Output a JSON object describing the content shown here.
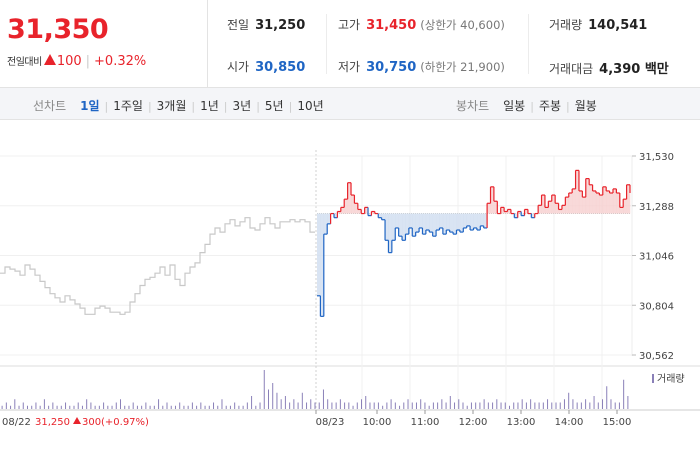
{
  "summary": {
    "price": "31,350",
    "change_label": "전일대비",
    "change_amount": "100",
    "change_rate": "+0.32%"
  },
  "stats": {
    "prev_close": {
      "label": "전일",
      "value": "31,250"
    },
    "open": {
      "label": "시가",
      "value": "30,850"
    },
    "high": {
      "label": "고가",
      "value": "31,450",
      "sub": "(상한가 40,600)"
    },
    "low": {
      "label": "저가",
      "value": "30,750",
      "sub": "(하한가 21,900)"
    },
    "volume": {
      "label": "거래량",
      "value": "140,541"
    },
    "amount": {
      "label": "거래대금",
      "value": "4,390 백만"
    }
  },
  "tabs": {
    "line_title": "선차트",
    "line_items": [
      "1일",
      "1주일",
      "3개월",
      "1년",
      "3년",
      "5년",
      "10년"
    ],
    "line_active": "1일",
    "candle_title": "봉차트",
    "candle_items": [
      "일봉",
      "주봉",
      "월봉"
    ]
  },
  "chart_data": {
    "type": "line",
    "y_ticks": [
      "31,530",
      "31,288",
      "31,046",
      "30,804",
      "30,562"
    ],
    "ylim": [
      30562,
      31530
    ],
    "reference_price": 31250,
    "previous_day": {
      "date_label": "08/22",
      "close": "31,250",
      "change": "300",
      "rate": "(+0.97%)"
    },
    "time_labels": [
      "08/23",
      "10:00",
      "11:00",
      "12:00",
      "13:00",
      "14:00",
      "15:00"
    ],
    "volume_legend": "거래량",
    "colors": {
      "up": "#e8232b",
      "down": "#1f65c4",
      "prev_day": "#c8c8c8",
      "up_fill": "#f6d0d0",
      "down_fill": "#d0ddf0",
      "volume": "#8a80b8"
    },
    "prev_series": [
      30960,
      30990,
      30980,
      30970,
      30950,
      31000,
      30980,
      30950,
      30920,
      30890,
      30860,
      30840,
      30820,
      30850,
      30830,
      30810,
      30790,
      30760,
      30760,
      30790,
      30800,
      30790,
      30770,
      30770,
      30760,
      30770,
      30820,
      30860,
      30900,
      30930,
      30940,
      30960,
      30990,
      30950,
      31000,
      30930,
      30900,
      30960,
      30990,
      31010,
      31060,
      31100,
      31150,
      31180,
      31160,
      31200,
      31220,
      31190,
      31210,
      31230,
      31180,
      31170,
      31200,
      31230,
      31200,
      31180,
      31210,
      31210,
      31220,
      31210,
      31220,
      31210,
      31160,
      31160
    ],
    "today_series": [
      30850,
      30750,
      31150,
      31200,
      31250,
      31230,
      31260,
      31280,
      31320,
      31400,
      31340,
      31300,
      31270,
      31250,
      31280,
      31240,
      31260,
      31250,
      31230,
      31220,
      31120,
      31060,
      31120,
      31180,
      31140,
      31120,
      31150,
      31180,
      31140,
      31160,
      31180,
      31150,
      31170,
      31160,
      31140,
      31170,
      31180,
      31150,
      31170,
      31160,
      31150,
      31170,
      31160,
      31180,
      31190,
      31170,
      31180,
      31170,
      31190,
      31180,
      31300,
      31380,
      31310,
      31250,
      31280,
      31260,
      31270,
      31250,
      31230,
      31260,
      31240,
      31270,
      31250,
      31230,
      31250,
      31290,
      31340,
      31280,
      31310,
      31340,
      31300,
      31270,
      31290,
      31330,
      31350,
      31370,
      31460,
      31360,
      31330,
      31420,
      31390,
      31360,
      31350,
      31340,
      31380,
      31360,
      31350,
      31370,
      31350,
      31280,
      31320,
      31390,
      31350
    ],
    "volume_series": [
      1,
      2,
      1,
      3,
      1,
      2,
      1,
      1,
      2,
      1,
      3,
      1,
      2,
      1,
      1,
      2,
      1,
      1,
      2,
      1,
      3,
      2,
      1,
      1,
      2,
      1,
      1,
      2,
      3,
      1,
      1,
      2,
      1,
      1,
      2,
      1,
      1,
      3,
      1,
      2,
      1,
      1,
      2,
      1,
      1,
      2,
      1,
      2,
      1,
      1,
      2,
      1,
      3,
      1,
      1,
      2,
      1,
      1,
      2,
      4,
      1,
      2,
      12,
      6,
      8,
      5,
      3,
      4,
      2,
      3,
      2,
      5,
      2,
      3,
      2,
      2,
      6,
      3,
      2,
      2,
      3,
      2,
      2,
      1,
      2,
      3,
      4,
      2,
      2,
      2,
      1,
      2,
      3,
      2,
      1,
      2,
      3,
      2,
      2,
      3,
      2,
      1,
      2,
      2,
      3,
      2,
      4,
      2,
      3,
      2,
      1,
      2,
      2,
      2,
      3,
      2,
      2,
      3,
      2,
      2,
      1,
      2,
      2,
      3,
      2,
      3,
      2,
      2,
      2,
      3,
      2,
      2,
      2,
      3,
      5,
      3,
      2,
      2,
      3,
      2,
      4,
      2,
      3,
      7,
      3,
      2,
      2,
      9,
      4
    ]
  }
}
